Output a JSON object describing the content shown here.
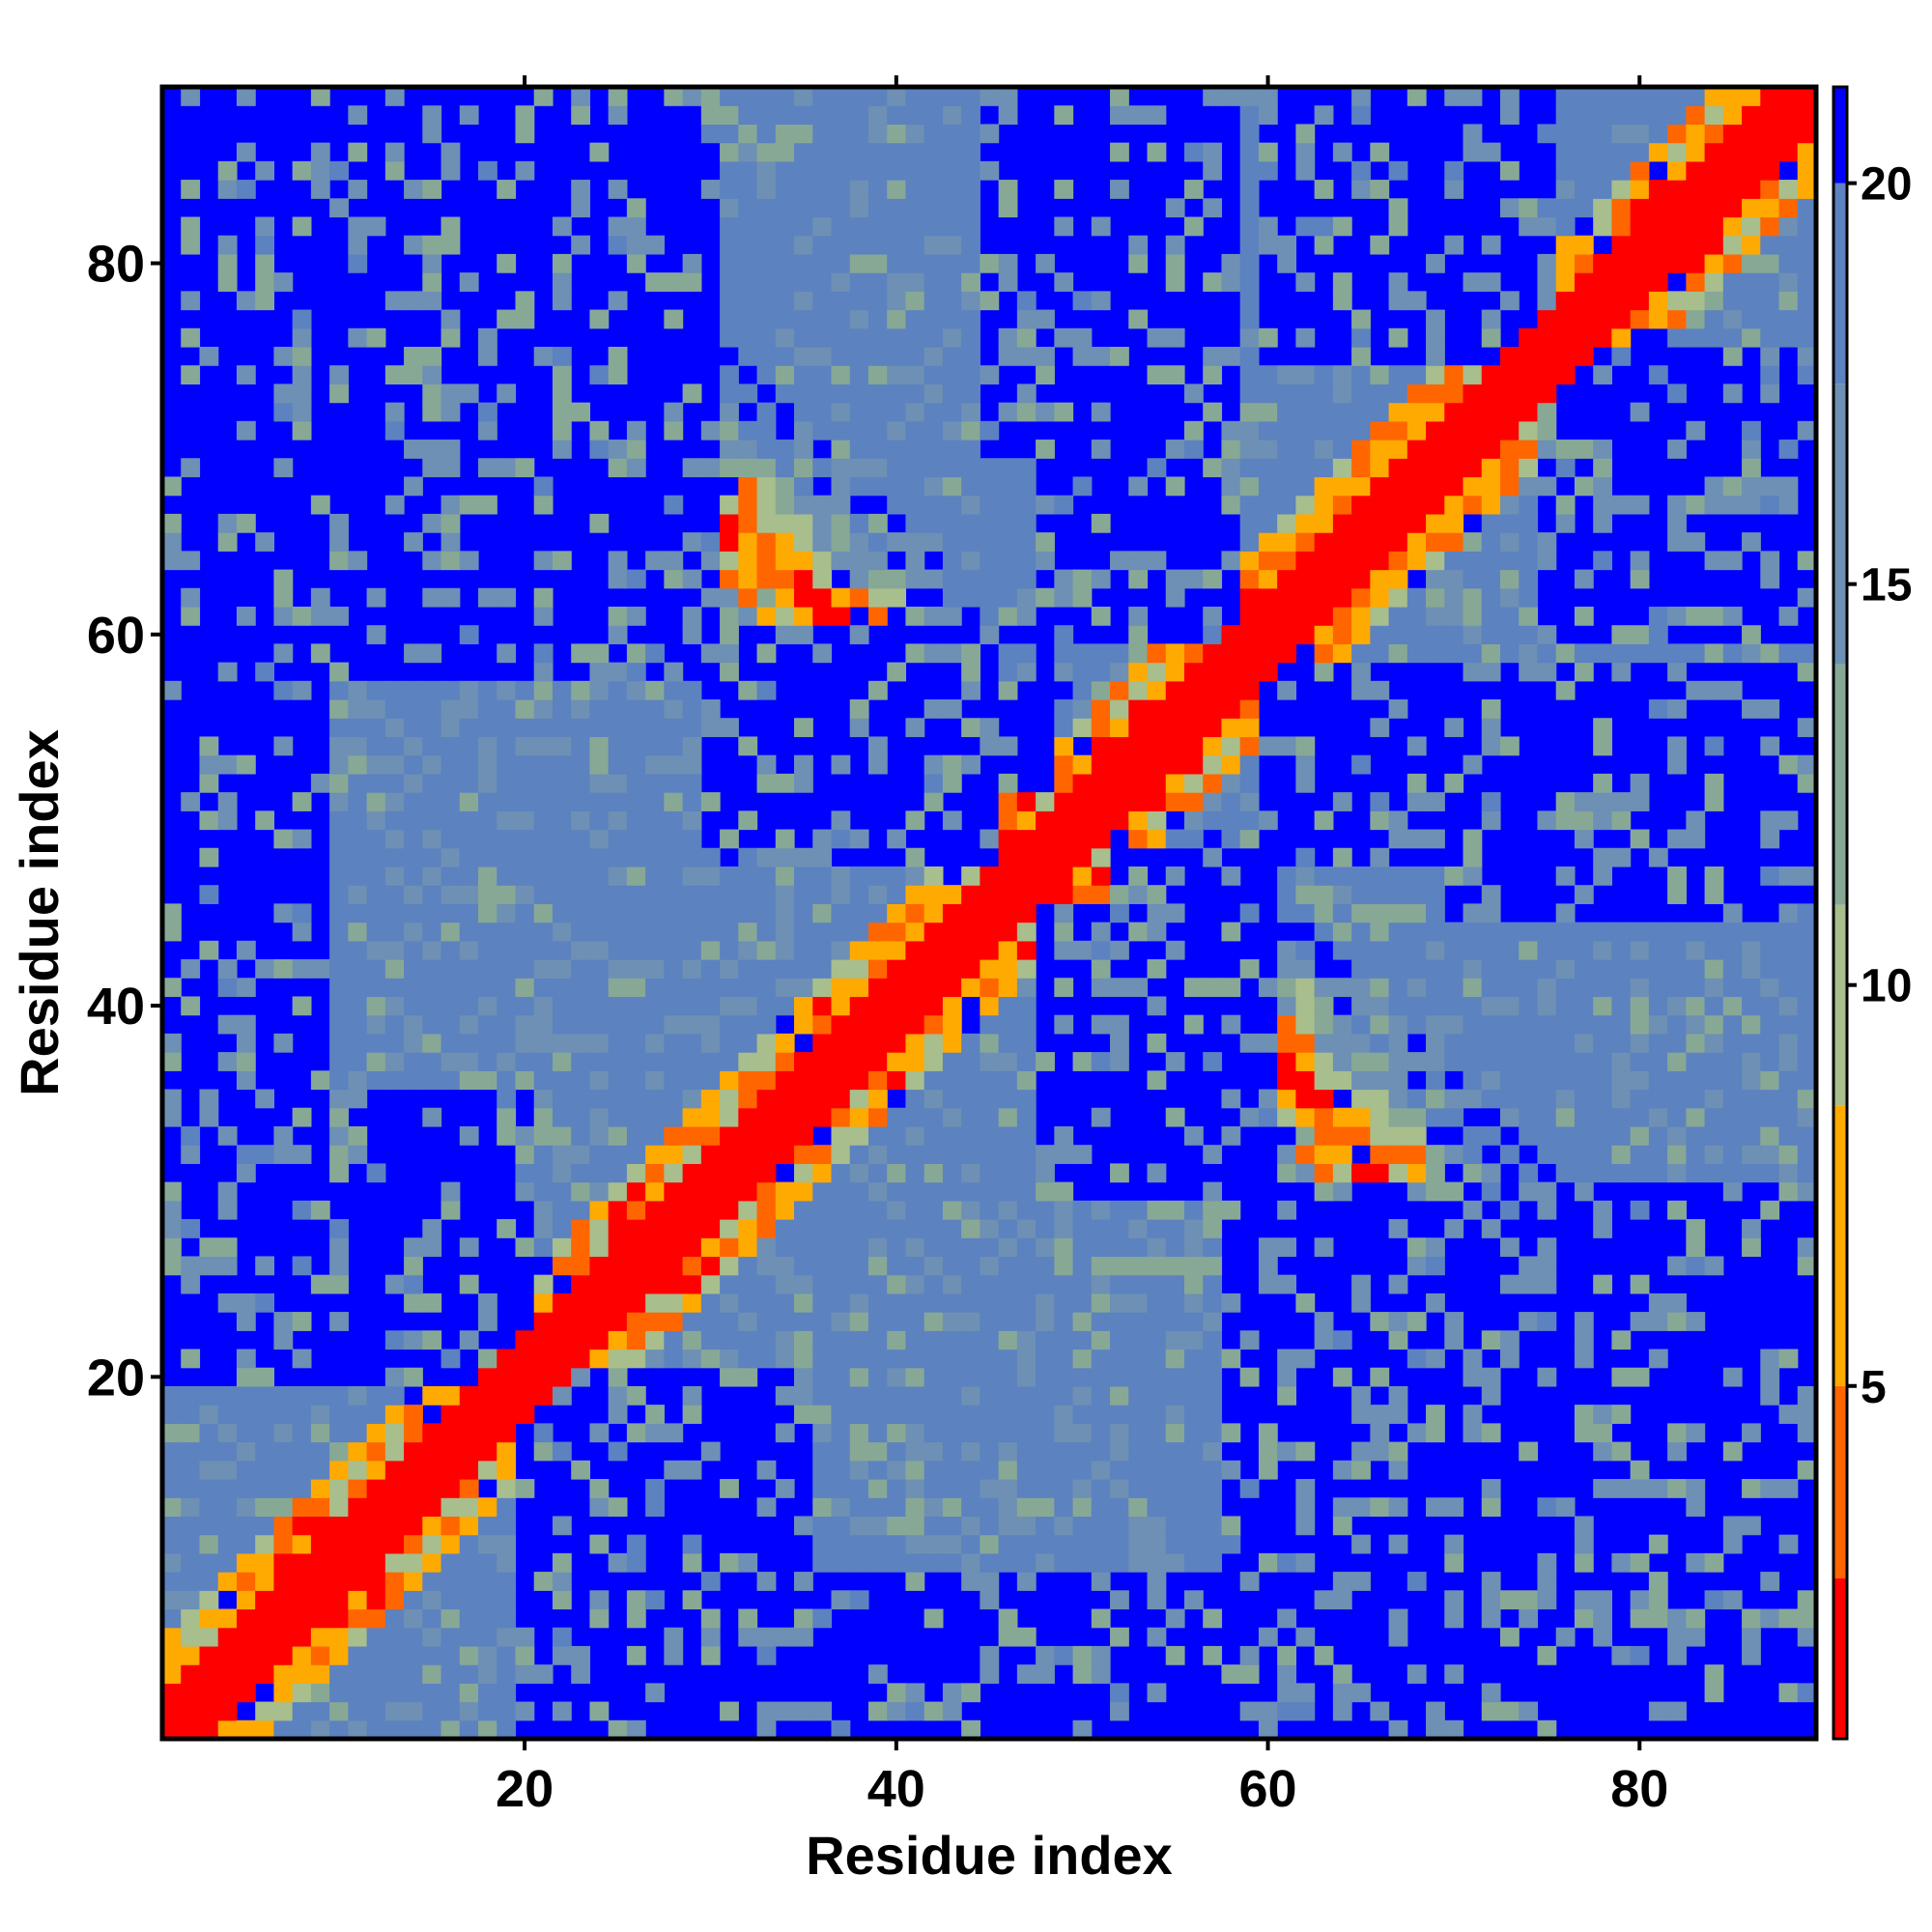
{
  "chart_data": {
    "type": "heatmap",
    "title": "",
    "xlabel": "Residue index",
    "ylabel": "Residue index",
    "n_residues": 89,
    "xlim": [
      0.5,
      89.5
    ],
    "ylim": [
      0.5,
      89.5
    ],
    "x_ticks": [
      20,
      40,
      60,
      80
    ],
    "y_ticks": [
      20,
      40,
      60,
      80
    ],
    "colorbar": {
      "range": [
        0.6,
        21.2
      ],
      "ticks": [
        5,
        10,
        15,
        20
      ],
      "colors": [
        {
          "max": 2.6,
          "color": "#ff0000"
        },
        {
          "max": 5.0,
          "color": "#ff6600"
        },
        {
          "max": 8.5,
          "color": "#ffaa00"
        },
        {
          "max": 11.0,
          "color": "#a8be8c"
        },
        {
          "max": 14.0,
          "color": "#88a896"
        },
        {
          "max": 17.5,
          "color": "#6d90b4"
        },
        {
          "max": 20.0,
          "color": "#5c82c0"
        },
        {
          "max": 99,
          "color": "#0000ff"
        }
      ]
    },
    "description_of_values": "Symmetric residue-residue distance map; diagonal ~0 (red), two anti-diagonal contact bands crossing near residue 48, background far (blue, >20)",
    "structure": {
      "diagonal_bands": [
        [
          1,
          89
        ]
      ],
      "antidiagonal_sum": 97,
      "antidiagonal_range": [
        12,
        85
      ],
      "far_regions": [
        {
          "x": [
            8,
            30
          ],
          "y": [
            60,
            89
          ]
        },
        {
          "x": [
            30,
            45
          ],
          "y": [
            48,
            60
          ]
        },
        {
          "x": [
            52,
            60
          ],
          "y": [
            35,
            48
          ]
        },
        {
          "x": [
            58,
            75
          ],
          "y": [
            10,
            30
          ]
        },
        {
          "x": [
            60,
            89
          ],
          "y": [
            48,
            58
          ]
        },
        {
          "x": [
            75,
            89
          ],
          "y": [
            60,
            75
          ]
        },
        {
          "x": [
            45,
            55
          ],
          "y": [
            70,
            89
          ]
        },
        {
          "x": [
            20,
            35
          ],
          "y": [
            1,
            20
          ]
        }
      ]
    }
  }
}
